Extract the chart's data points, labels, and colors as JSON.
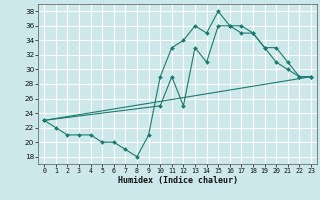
{
  "title": "",
  "xlabel": "Humidex (Indice chaleur)",
  "xlim": [
    -0.5,
    23.5
  ],
  "ylim": [
    17,
    39
  ],
  "yticks": [
    18,
    20,
    22,
    24,
    26,
    28,
    30,
    32,
    34,
    36,
    38
  ],
  "xticks": [
    0,
    1,
    2,
    3,
    4,
    5,
    6,
    7,
    8,
    9,
    10,
    11,
    12,
    13,
    14,
    15,
    16,
    17,
    18,
    19,
    20,
    21,
    22,
    23
  ],
  "bg_color": "#cde8ea",
  "grid_color": "#ffffff",
  "line_color": "#1a7a6e",
  "lines": [
    {
      "x": [
        0,
        1,
        2,
        3,
        4,
        5,
        6,
        7,
        8,
        9,
        10,
        11,
        12,
        13,
        14,
        15,
        16,
        17,
        18,
        19,
        20,
        21,
        22,
        23
      ],
      "y": [
        23,
        22,
        21,
        21,
        21,
        20,
        20,
        19,
        18,
        21,
        29,
        33,
        34,
        36,
        35,
        38,
        36,
        36,
        35,
        33,
        31,
        30,
        29,
        29
      ],
      "marker": true
    },
    {
      "x": [
        0,
        10,
        11,
        12,
        13,
        14,
        15,
        16,
        17,
        18,
        19,
        20,
        21,
        22,
        23
      ],
      "y": [
        23,
        25,
        29,
        25,
        33,
        31,
        36,
        36,
        35,
        35,
        33,
        33,
        31,
        29,
        29
      ],
      "marker": true
    },
    {
      "x": [
        0,
        23
      ],
      "y": [
        23,
        29
      ],
      "marker": false
    }
  ]
}
